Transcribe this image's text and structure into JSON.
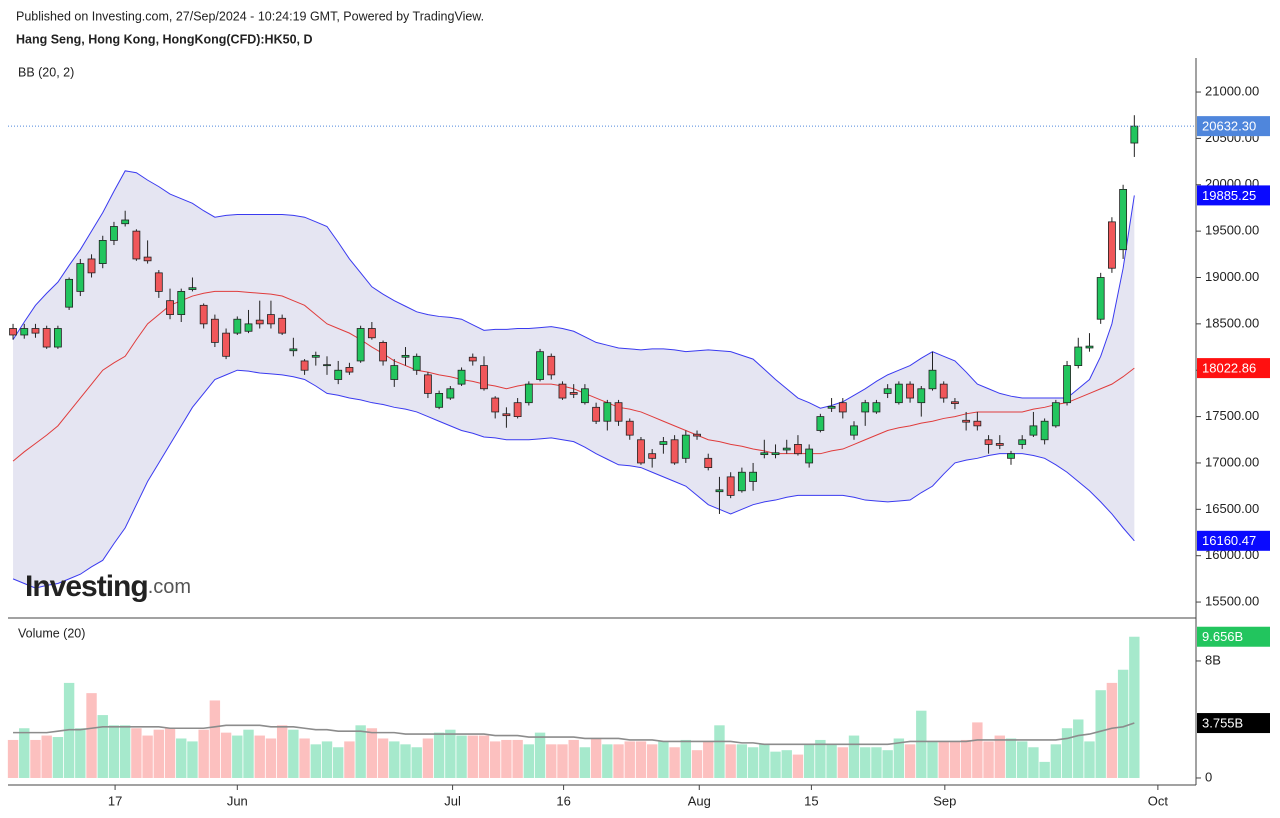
{
  "header": {
    "published": "Published on Investing.com, 27/Sep/2024 - 10:24:19 GMT, Powered by TradingView."
  },
  "watermark": {
    "brand": "Investing",
    "suffix": ".com"
  },
  "chart_data": [
    {
      "type": "candlestick",
      "title": "Hang Seng, Hong Kong, HongKong(CFD):HK50, D",
      "indicator": "BB (20, 2)",
      "open": [
        18450,
        18380,
        18450,
        18450,
        18250,
        18680,
        18850,
        19200,
        19150,
        19400,
        19580,
        19500,
        19220,
        19050,
        18750,
        18600,
        18870,
        18700,
        18550,
        18400,
        18400,
        18420,
        18540,
        18600,
        18560,
        18210,
        18100,
        18140,
        18050,
        17900,
        18030,
        18100,
        18450,
        18300,
        17900,
        18140,
        18000,
        17950,
        17600,
        17700,
        17850,
        18140,
        18050,
        17700,
        17530,
        17650,
        17650,
        17900,
        18150,
        17850,
        17760,
        17650,
        17600,
        17450,
        17650,
        17450,
        17250,
        17100,
        17200,
        17250,
        17050,
        17310,
        17050,
        16690,
        16850,
        16700,
        16800,
        17090,
        17090,
        17140,
        17200,
        17000,
        17350,
        17590,
        17650,
        17300,
        17550,
        17550,
        17750,
        17650,
        17850,
        17650,
        17800,
        17850,
        17660,
        17460,
        17450,
        17250,
        17210,
        17050,
        17200,
        17300,
        17250,
        17400,
        17650,
        18050,
        18240,
        18550,
        19600,
        19300,
        20450
      ],
      "high": [
        18500,
        18500,
        18500,
        18480,
        18480,
        19000,
        19200,
        19250,
        19450,
        19600,
        19720,
        19520,
        19400,
        19080,
        18880,
        18880,
        19000,
        18720,
        18600,
        18450,
        18580,
        18650,
        18750,
        18750,
        18600,
        18350,
        18120,
        18200,
        18150,
        18100,
        18080,
        18480,
        18520,
        18320,
        18120,
        18250,
        18180,
        17980,
        17780,
        17830,
        18030,
        18180,
        18150,
        17720,
        17600,
        17700,
        17880,
        18230,
        18180,
        17880,
        17850,
        17850,
        17650,
        17680,
        17680,
        17480,
        17280,
        17150,
        17280,
        17300,
        17350,
        17350,
        17100,
        16850,
        16900,
        16950,
        17000,
        17250,
        17200,
        17250,
        17300,
        17200,
        17530,
        17700,
        17700,
        17450,
        17680,
        17680,
        17850,
        17880,
        17880,
        17830,
        18200,
        17880,
        17700,
        17550,
        17550,
        17300,
        17300,
        17130,
        17300,
        17550,
        17480,
        17680,
        18100,
        18350,
        18400,
        19050,
        19650,
        20000,
        20750
      ],
      "low": [
        18330,
        18340,
        18350,
        18230,
        18230,
        18650,
        18800,
        19000,
        19100,
        19350,
        19550,
        19180,
        19150,
        18780,
        18550,
        18520,
        18850,
        18450,
        18250,
        18120,
        18380,
        18400,
        18450,
        18450,
        18380,
        18150,
        17950,
        18050,
        17950,
        17850,
        17950,
        18080,
        18330,
        18050,
        17820,
        18050,
        17950,
        17700,
        17580,
        17680,
        17830,
        18050,
        17780,
        17480,
        17380,
        17480,
        17620,
        17880,
        17900,
        17680,
        17700,
        17630,
        17420,
        17350,
        17400,
        17250,
        16980,
        16950,
        17100,
        16980,
        17000,
        17250,
        16920,
        16450,
        16620,
        16680,
        16700,
        17050,
        17050,
        17100,
        17080,
        16950,
        17330,
        17550,
        17480,
        17250,
        17400,
        17530,
        17700,
        17630,
        17650,
        17500,
        17780,
        17650,
        17580,
        17350,
        17350,
        17100,
        17150,
        16980,
        17150,
        17280,
        17200,
        17380,
        17620,
        18020,
        18200,
        18500,
        19050,
        19200,
        20300
      ],
      "close": [
        18380,
        18450,
        18400,
        18250,
        18450,
        18980,
        19150,
        19050,
        19400,
        19550,
        19620,
        19200,
        19180,
        18850,
        18600,
        18850,
        18890,
        18500,
        18300,
        18150,
        18550,
        18500,
        18500,
        18500,
        18400,
        18230,
        18000,
        18160,
        18060,
        18000,
        17980,
        18450,
        18350,
        18100,
        18050,
        18160,
        18150,
        17750,
        17750,
        17800,
        18000,
        18100,
        17800,
        17550,
        17510,
        17500,
        17850,
        18200,
        17950,
        17700,
        17740,
        17800,
        17450,
        17650,
        17450,
        17300,
        17000,
        17050,
        17230,
        17000,
        17300,
        17290,
        16950,
        16710,
        16650,
        16900,
        16900,
        17110,
        17110,
        17160,
        17100,
        17150,
        17500,
        17610,
        17550,
        17400,
        17650,
        17650,
        17800,
        17850,
        17700,
        17800,
        18000,
        17700,
        17640,
        17440,
        17400,
        17200,
        17190,
        17100,
        17250,
        17400,
        17450,
        17650,
        18050,
        18250,
        18260,
        19000,
        19100,
        19950,
        20632.3
      ],
      "close_label": "20632.30",
      "up_color": "#22c55e",
      "down_color": "#f0575a",
      "badge_color": "#4f86dc",
      "bollinger": {
        "upper": [
          18330,
          18520,
          18700,
          18830,
          18950,
          19130,
          19300,
          19500,
          19700,
          19930,
          20150,
          20130,
          20050,
          19980,
          19900,
          19850,
          19800,
          19720,
          19650,
          19670,
          19680,
          19680,
          19680,
          19680,
          19680,
          19670,
          19650,
          19600,
          19550,
          19380,
          19200,
          19050,
          18900,
          18820,
          18750,
          18690,
          18630,
          18600,
          18580,
          18570,
          18550,
          18490,
          18430,
          18440,
          18440,
          18450,
          18450,
          18460,
          18470,
          18450,
          18420,
          18360,
          18300,
          18270,
          18240,
          18230,
          18220,
          18230,
          18230,
          18220,
          18200,
          18210,
          18220,
          18210,
          18200,
          18160,
          18120,
          18010,
          17900,
          17800,
          17700,
          17650,
          17590,
          17620,
          17660,
          17730,
          17800,
          17880,
          17950,
          18000,
          18050,
          18130,
          18200,
          18150,
          18100,
          17980,
          17850,
          17800,
          17750,
          17720,
          17700,
          17700,
          17700,
          17700,
          17700,
          17800,
          17900,
          18150,
          18500,
          19100,
          19885.25
        ],
        "middle": [
          17020,
          17120,
          17210,
          17300,
          17400,
          17550,
          17700,
          17850,
          18000,
          18080,
          18150,
          18330,
          18500,
          18600,
          18700,
          18750,
          18800,
          18830,
          18850,
          18850,
          18850,
          18840,
          18830,
          18820,
          18800,
          18750,
          18700,
          18600,
          18500,
          18450,
          18400,
          18330,
          18250,
          18180,
          18100,
          18050,
          18000,
          17980,
          17950,
          17930,
          17900,
          17880,
          17850,
          17830,
          17800,
          17830,
          17850,
          17850,
          17850,
          17830,
          17800,
          17750,
          17700,
          17650,
          17600,
          17580,
          17550,
          17500,
          17450,
          17400,
          17350,
          17300,
          17250,
          17230,
          17200,
          17180,
          17150,
          17130,
          17100,
          17100,
          17100,
          17100,
          17100,
          17130,
          17150,
          17200,
          17250,
          17300,
          17350,
          17380,
          17400,
          17430,
          17450,
          17480,
          17500,
          17530,
          17550,
          17550,
          17550,
          17550,
          17550,
          17580,
          17600,
          17630,
          17650,
          17700,
          17750,
          17800,
          17850,
          17930,
          18022.86
        ],
        "lower": [
          15750,
          15700,
          15650,
          15680,
          15700,
          15750,
          15800,
          15880,
          15950,
          16130,
          16300,
          16550,
          16800,
          17000,
          17200,
          17400,
          17600,
          17750,
          17900,
          17950,
          18000,
          17990,
          17970,
          17960,
          17950,
          17930,
          17900,
          17830,
          17750,
          17730,
          17700,
          17680,
          17650,
          17630,
          17600,
          17580,
          17550,
          17500,
          17450,
          17400,
          17350,
          17320,
          17280,
          17270,
          17250,
          17250,
          17250,
          17260,
          17270,
          17250,
          17230,
          17170,
          17100,
          17040,
          16980,
          16970,
          16950,
          16900,
          16850,
          16800,
          16750,
          16650,
          16550,
          16500,
          16450,
          16500,
          16550,
          16580,
          16600,
          16630,
          16650,
          16650,
          16650,
          16650,
          16650,
          16630,
          16600,
          16590,
          16580,
          16590,
          16600,
          16680,
          16750,
          16880,
          17000,
          17030,
          17050,
          17080,
          17100,
          17100,
          17100,
          17080,
          17050,
          16980,
          16900,
          16800,
          16700,
          16580,
          16450,
          16300,
          16160.47
        ],
        "upper_label": "19885.25",
        "middle_label": "18022.86",
        "lower_label": "16160.47",
        "band_color": "#3a3af0",
        "middle_color": "#e03c3c",
        "fill_color": "#e5e5f2",
        "badge_band_color": "#0a0aff",
        "badge_middle_color": "#ff1010"
      },
      "ylim": [
        15328,
        21367
      ],
      "yticks": [
        {
          "value": 15500,
          "label": "15500.00"
        },
        {
          "value": 16000,
          "label": "16000.00"
        },
        {
          "value": 16500,
          "label": "16500.00"
        },
        {
          "value": 17000,
          "label": "17000.00"
        },
        {
          "value": 17500,
          "label": "17500.00"
        },
        {
          "value": 18000,
          "label": "18000.00"
        },
        {
          "value": 18500,
          "label": "18500.00"
        },
        {
          "value": 19000,
          "label": "19000.00"
        },
        {
          "value": 19500,
          "label": "19500.00"
        },
        {
          "value": 20000,
          "label": "20000.00"
        },
        {
          "value": 20500,
          "label": "20500.00"
        },
        {
          "value": 21000,
          "label": "21000.00"
        }
      ],
      "xlim": [
        -0.45,
        105.5
      ],
      "xticks": [
        {
          "value": 9.1,
          "label": "17"
        },
        {
          "value": 20,
          "label": "Jun"
        },
        {
          "value": 39.2,
          "label": "Jul"
        },
        {
          "value": 49.1,
          "label": "16"
        },
        {
          "value": 61.2,
          "label": "Aug"
        },
        {
          "value": 71.2,
          "label": "15"
        },
        {
          "value": 83.1,
          "label": "Sep"
        },
        {
          "value": 102.1,
          "label": "Oct"
        }
      ]
    },
    {
      "type": "bar",
      "title": "Volume (20)",
      "values": [
        2.6,
        3.4,
        2.6,
        2.9,
        2.8,
        6.5,
        3.4,
        5.8,
        4.3,
        3.6,
        3.6,
        3.4,
        2.9,
        3.3,
        3.4,
        2.7,
        2.5,
        3.3,
        5.3,
        3.1,
        2.9,
        3.3,
        2.9,
        2.7,
        3.6,
        3.3,
        2.7,
        2.3,
        2.5,
        2.1,
        2.5,
        3.6,
        3.4,
        2.7,
        2.5,
        2.3,
        2.1,
        2.7,
        3.1,
        3.3,
        2.9,
        2.9,
        2.9,
        2.5,
        2.6,
        2.6,
        2.3,
        3.1,
        2.3,
        2.3,
        2.6,
        2.1,
        2.7,
        2.3,
        2.3,
        2.5,
        2.5,
        2.3,
        2.5,
        2.1,
        2.6,
        1.9,
        2.5,
        3.6,
        2.3,
        2.3,
        2.1,
        2.3,
        1.8,
        1.9,
        1.6,
        2.3,
        2.6,
        2.3,
        2.1,
        2.9,
        2.1,
        2.1,
        1.9,
        2.7,
        2.3,
        4.6,
        2.5,
        2.5,
        2.5,
        2.6,
        3.8,
        2.5,
        2.9,
        2.7,
        2.5,
        2.1,
        1.1,
        2.3,
        3.4,
        4.0,
        2.5,
        6.0,
        6.5,
        7.4,
        9.656
      ],
      "value_label": "9.656B",
      "ma": [
        3.1,
        3.1,
        3.1,
        3.1,
        3.2,
        3.3,
        3.3,
        3.4,
        3.5,
        3.5,
        3.5,
        3.5,
        3.5,
        3.5,
        3.4,
        3.4,
        3.4,
        3.4,
        3.5,
        3.6,
        3.6,
        3.6,
        3.6,
        3.5,
        3.5,
        3.5,
        3.4,
        3.3,
        3.3,
        3.2,
        3.2,
        3.2,
        3.1,
        3.1,
        3.1,
        3.0,
        3.0,
        3.0,
        3.0,
        3.0,
        3.0,
        3.0,
        3.0,
        2.9,
        2.9,
        2.9,
        2.8,
        2.8,
        2.8,
        2.8,
        2.8,
        2.7,
        2.7,
        2.7,
        2.7,
        2.6,
        2.6,
        2.6,
        2.5,
        2.5,
        2.5,
        2.5,
        2.5,
        2.5,
        2.5,
        2.4,
        2.4,
        2.3,
        2.3,
        2.3,
        2.3,
        2.3,
        2.3,
        2.3,
        2.3,
        2.3,
        2.3,
        2.3,
        2.3,
        2.4,
        2.5,
        2.5,
        2.5,
        2.5,
        2.5,
        2.5,
        2.6,
        2.6,
        2.6,
        2.6,
        2.6,
        2.6,
        2.6,
        2.6,
        2.7,
        2.9,
        3.0,
        3.2,
        3.4,
        3.5,
        3.755
      ],
      "ma_label": "3.755B",
      "up_color": "#a6e9cc",
      "down_color": "#fcc0bf",
      "ma_color": "#8c8c8c",
      "badge_up_color": "#22c55e",
      "badge_ma_color": "#000000",
      "ylim": [
        -0.48,
        10.8
      ],
      "yticks": [
        0,
        {
          "value": 8,
          "label": "8B"
        }
      ]
    }
  ]
}
